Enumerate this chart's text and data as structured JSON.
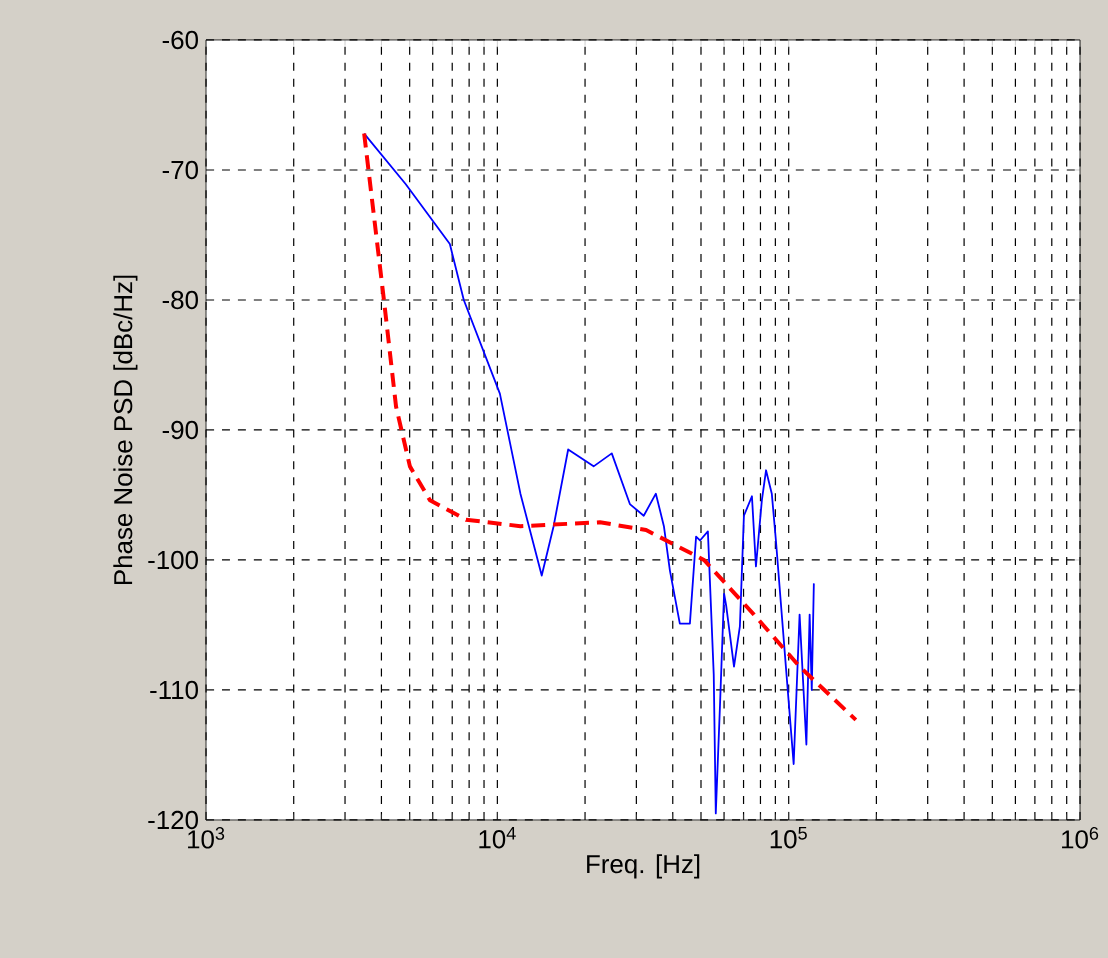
{
  "chart_data": {
    "type": "line",
    "xlabel": "Freq. [Hz]",
    "ylabel": "Phase Noise PSD [dBc/Hz]",
    "log": "x",
    "grid": true,
    "marker": "none",
    "xlim": [
      1000,
      1000000
    ],
    "ylim": [
      -120,
      -60
    ],
    "xticks": [
      {
        "value": 1000,
        "label": "10$^{3}$"
      },
      {
        "value": 10000,
        "label": "10$^{4}$"
      },
      {
        "value": 100000,
        "label": "10$^{5}$"
      },
      {
        "value": 1000000,
        "label": "10$^{6}$"
      }
    ],
    "yticks": [
      -120,
      -110,
      -100,
      -90,
      -80,
      -70,
      -60
    ],
    "series": [
      {
        "color": "#0000ff",
        "line_style": "solid",
        "x": [
          3490,
          4850,
          6870,
          7670,
          10200,
          12000,
          14200,
          15600,
          17500,
          21400,
          24700,
          28500,
          31800,
          35000,
          37300,
          39100,
          42300,
          45800,
          48100,
          49600,
          52800,
          55300,
          56200,
          58100,
          60000,
          61000,
          64900,
          68000,
          70200,
          74800,
          77200,
          80900,
          83600,
          87500,
          90400,
          97800,
          104000,
          109000,
          115000,
          118000,
          120000,
          122000
        ],
        "values": [
          -67.2,
          -71.1,
          -75.7,
          -80,
          -87.2,
          -94.9,
          -101.2,
          -97.4,
          -91.5,
          -92.8,
          -91.8,
          -95.7,
          -96.6,
          -94.9,
          -97.4,
          -100.8,
          -104.9,
          -104.9,
          -98.2,
          -98.5,
          -97.8,
          -108.8,
          -119.5,
          -111.2,
          -102.6,
          -103.5,
          -108.2,
          -105.1,
          -96.6,
          -95.1,
          -100.5,
          -95.4,
          -93.1,
          -94.9,
          -98.5,
          -108.2,
          -115.7,
          -104.2,
          -114.2,
          -104.2,
          -110.0,
          -101.8
        ]
      },
      {
        "color": "#ff0000",
        "line_style": "dashed",
        "x": [
          3490,
          4080,
          4490,
          5010,
          5870,
          7800,
          12000,
          22500,
          32400,
          51200,
          76000,
          109000,
          170000
        ],
        "values": [
          -67.2,
          -80,
          -88.2,
          -92.8,
          -95.4,
          -96.9,
          -97.4,
          -97.1,
          -97.7,
          -100,
          -104.2,
          -108.2,
          -112.3
        ]
      }
    ]
  }
}
